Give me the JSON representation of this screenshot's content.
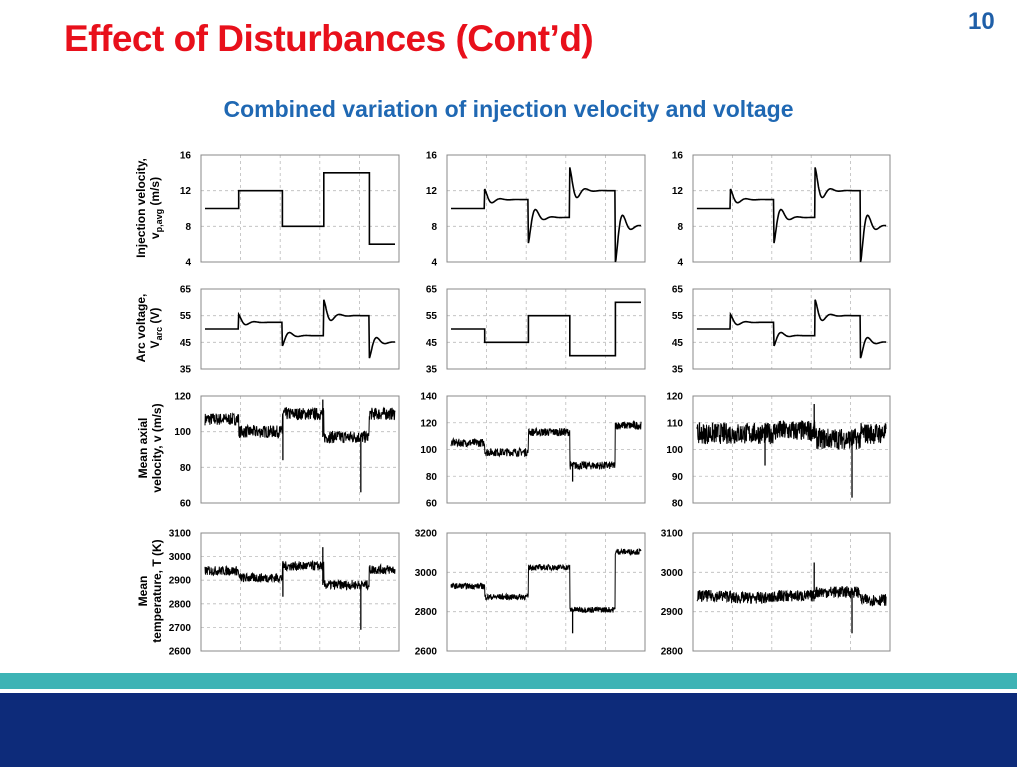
{
  "slide": {
    "title": "Effect of Disturbances (Cont’d)",
    "page_number": "10",
    "subtitle": "Combined variation of injection velocity and voltage"
  },
  "colors": {
    "title": "#e8101b",
    "subtitle": "#1f68b3",
    "page_number": "#1f5fa8",
    "band_teal": "#3db3b5",
    "band_navy": "#0d2b7a"
  },
  "row_labels": {
    "injection_line1": "Injection velocity,",
    "injection_v": "v",
    "injection_sub": "p,avg",
    "injection_unit": " (m/s)",
    "arc_line1": "Arc voltage,",
    "arc_v": "V",
    "arc_sub": "arc",
    "arc_unit": " (V)",
    "axial_line1": "Mean axial",
    "axial_line2": "velocity, v (m/s)",
    "temp_line1": "Mean",
    "temp_line2": "temperature, T (K)"
  },
  "chart_data": [
    {
      "id": "inj-a",
      "type": "line",
      "ylim": [
        4,
        16
      ],
      "yticks": [
        4,
        8,
        12,
        16
      ],
      "steps": [
        [
          0,
          10
        ],
        [
          0.19,
          12
        ],
        [
          0.41,
          8
        ],
        [
          0.62,
          14
        ],
        [
          0.85,
          6
        ]
      ],
      "noise": 0,
      "spikes": []
    },
    {
      "id": "inj-b",
      "type": "line",
      "ylim": [
        4,
        16
      ],
      "yticks": [
        4,
        8,
        12,
        16
      ],
      "steps": [
        [
          0,
          10
        ],
        [
          0.19,
          11
        ],
        [
          0.41,
          9
        ],
        [
          0.62,
          12
        ],
        [
          0.85,
          8
        ]
      ],
      "damped": true,
      "osc": [
        [
          0.19,
          1.2
        ],
        [
          0.41,
          -3
        ],
        [
          0.62,
          2.6
        ],
        [
          0.85,
          -4.2
        ]
      ],
      "noise": 0,
      "spikes": []
    },
    {
      "id": "inj-c",
      "type": "line",
      "ylim": [
        4,
        16
      ],
      "yticks": [
        4,
        8,
        12,
        16
      ],
      "steps": [
        [
          0,
          10
        ],
        [
          0.19,
          11
        ],
        [
          0.41,
          9
        ],
        [
          0.62,
          12
        ],
        [
          0.85,
          8
        ]
      ],
      "damped": true,
      "osc": [
        [
          0.19,
          1.2
        ],
        [
          0.41,
          -3
        ],
        [
          0.62,
          2.6
        ],
        [
          0.85,
          -4.2
        ]
      ],
      "noise": 0,
      "spikes": []
    },
    {
      "id": "arc-a",
      "type": "line",
      "ylim": [
        35,
        65
      ],
      "yticks": [
        35,
        45,
        55,
        65
      ],
      "steps": [
        [
          0,
          50
        ],
        [
          0.19,
          52.5
        ],
        [
          0.41,
          47.5
        ],
        [
          0.62,
          55
        ],
        [
          0.85,
          45
        ]
      ],
      "damped": true,
      "osc": [
        [
          0.19,
          3
        ],
        [
          0.41,
          -4
        ],
        [
          0.62,
          6
        ],
        [
          0.85,
          -6
        ]
      ],
      "noise": 0,
      "spikes": []
    },
    {
      "id": "arc-b",
      "type": "line",
      "ylim": [
        35,
        65
      ],
      "yticks": [
        35,
        45,
        55,
        65
      ],
      "steps": [
        [
          0,
          50
        ],
        [
          0.19,
          45
        ],
        [
          0.41,
          55
        ],
        [
          0.62,
          40
        ],
        [
          0.85,
          60
        ]
      ],
      "noise": 0,
      "spikes": []
    },
    {
      "id": "arc-c",
      "type": "line",
      "ylim": [
        35,
        65
      ],
      "yticks": [
        35,
        45,
        55,
        65
      ],
      "steps": [
        [
          0,
          50
        ],
        [
          0.19,
          52.5
        ],
        [
          0.41,
          47.5
        ],
        [
          0.62,
          55
        ],
        [
          0.85,
          45
        ]
      ],
      "damped": true,
      "osc": [
        [
          0.19,
          3
        ],
        [
          0.41,
          -4
        ],
        [
          0.62,
          6
        ],
        [
          0.85,
          -6
        ]
      ],
      "noise": 0,
      "spikes": []
    },
    {
      "id": "vel-a",
      "type": "line",
      "ylim": [
        60,
        120
      ],
      "yticks": [
        60,
        80,
        100,
        120
      ],
      "steps": [
        [
          0,
          107
        ],
        [
          0.19,
          100
        ],
        [
          0.41,
          110
        ],
        [
          0.62,
          97
        ],
        [
          0.85,
          110
        ]
      ],
      "noise": 3.5,
      "spikes": [
        [
          0.41,
          84
        ],
        [
          0.62,
          118
        ],
        [
          0.82,
          66
        ]
      ]
    },
    {
      "id": "vel-b",
      "type": "line",
      "ylim": [
        60,
        140
      ],
      "yticks": [
        60,
        80,
        100,
        120,
        140
      ],
      "steps": [
        [
          0,
          105
        ],
        [
          0.19,
          98
        ],
        [
          0.41,
          113
        ],
        [
          0.62,
          88
        ],
        [
          0.85,
          118
        ]
      ],
      "noise": 3,
      "spikes": [
        [
          0.64,
          76
        ]
      ]
    },
    {
      "id": "vel-c",
      "type": "line",
      "ylim": [
        80,
        120
      ],
      "yticks": [
        80,
        90,
        100,
        110,
        120
      ],
      "steps": [
        [
          0,
          106
        ],
        [
          0.19,
          106
        ],
        [
          0.41,
          107
        ],
        [
          0.62,
          104
        ],
        [
          0.85,
          106
        ]
      ],
      "noise": 4,
      "spikes": [
        [
          0.36,
          94
        ],
        [
          0.62,
          117
        ],
        [
          0.82,
          82
        ]
      ]
    },
    {
      "id": "temp-a",
      "type": "line",
      "ylim": [
        2600,
        3100
      ],
      "yticks": [
        2600,
        2700,
        2800,
        2900,
        3000,
        3100
      ],
      "steps": [
        [
          0,
          2940
        ],
        [
          0.19,
          2910
        ],
        [
          0.41,
          2960
        ],
        [
          0.62,
          2880
        ],
        [
          0.85,
          2945
        ]
      ],
      "noise": 20,
      "spikes": [
        [
          0.41,
          2830
        ],
        [
          0.62,
          3040
        ],
        [
          0.82,
          2690
        ]
      ]
    },
    {
      "id": "temp-b",
      "type": "line",
      "ylim": [
        2600,
        3200
      ],
      "yticks": [
        2600,
        2800,
        3000,
        3200
      ],
      "steps": [
        [
          0,
          2930
        ],
        [
          0.19,
          2875
        ],
        [
          0.41,
          3025
        ],
        [
          0.62,
          2810
        ],
        [
          0.85,
          3105
        ]
      ],
      "noise": 15,
      "spikes": [
        [
          0.64,
          2690
        ]
      ]
    },
    {
      "id": "temp-c",
      "type": "line",
      "ylim": [
        2800,
        3100
      ],
      "yticks": [
        2800,
        2900,
        3000,
        3100
      ],
      "steps": [
        [
          0,
          2940
        ],
        [
          0.19,
          2935
        ],
        [
          0.41,
          2940
        ],
        [
          0.62,
          2950
        ],
        [
          0.85,
          2930
        ]
      ],
      "noise": 15,
      "spikes": [
        [
          0.62,
          3025
        ],
        [
          0.82,
          2845
        ]
      ]
    }
  ]
}
